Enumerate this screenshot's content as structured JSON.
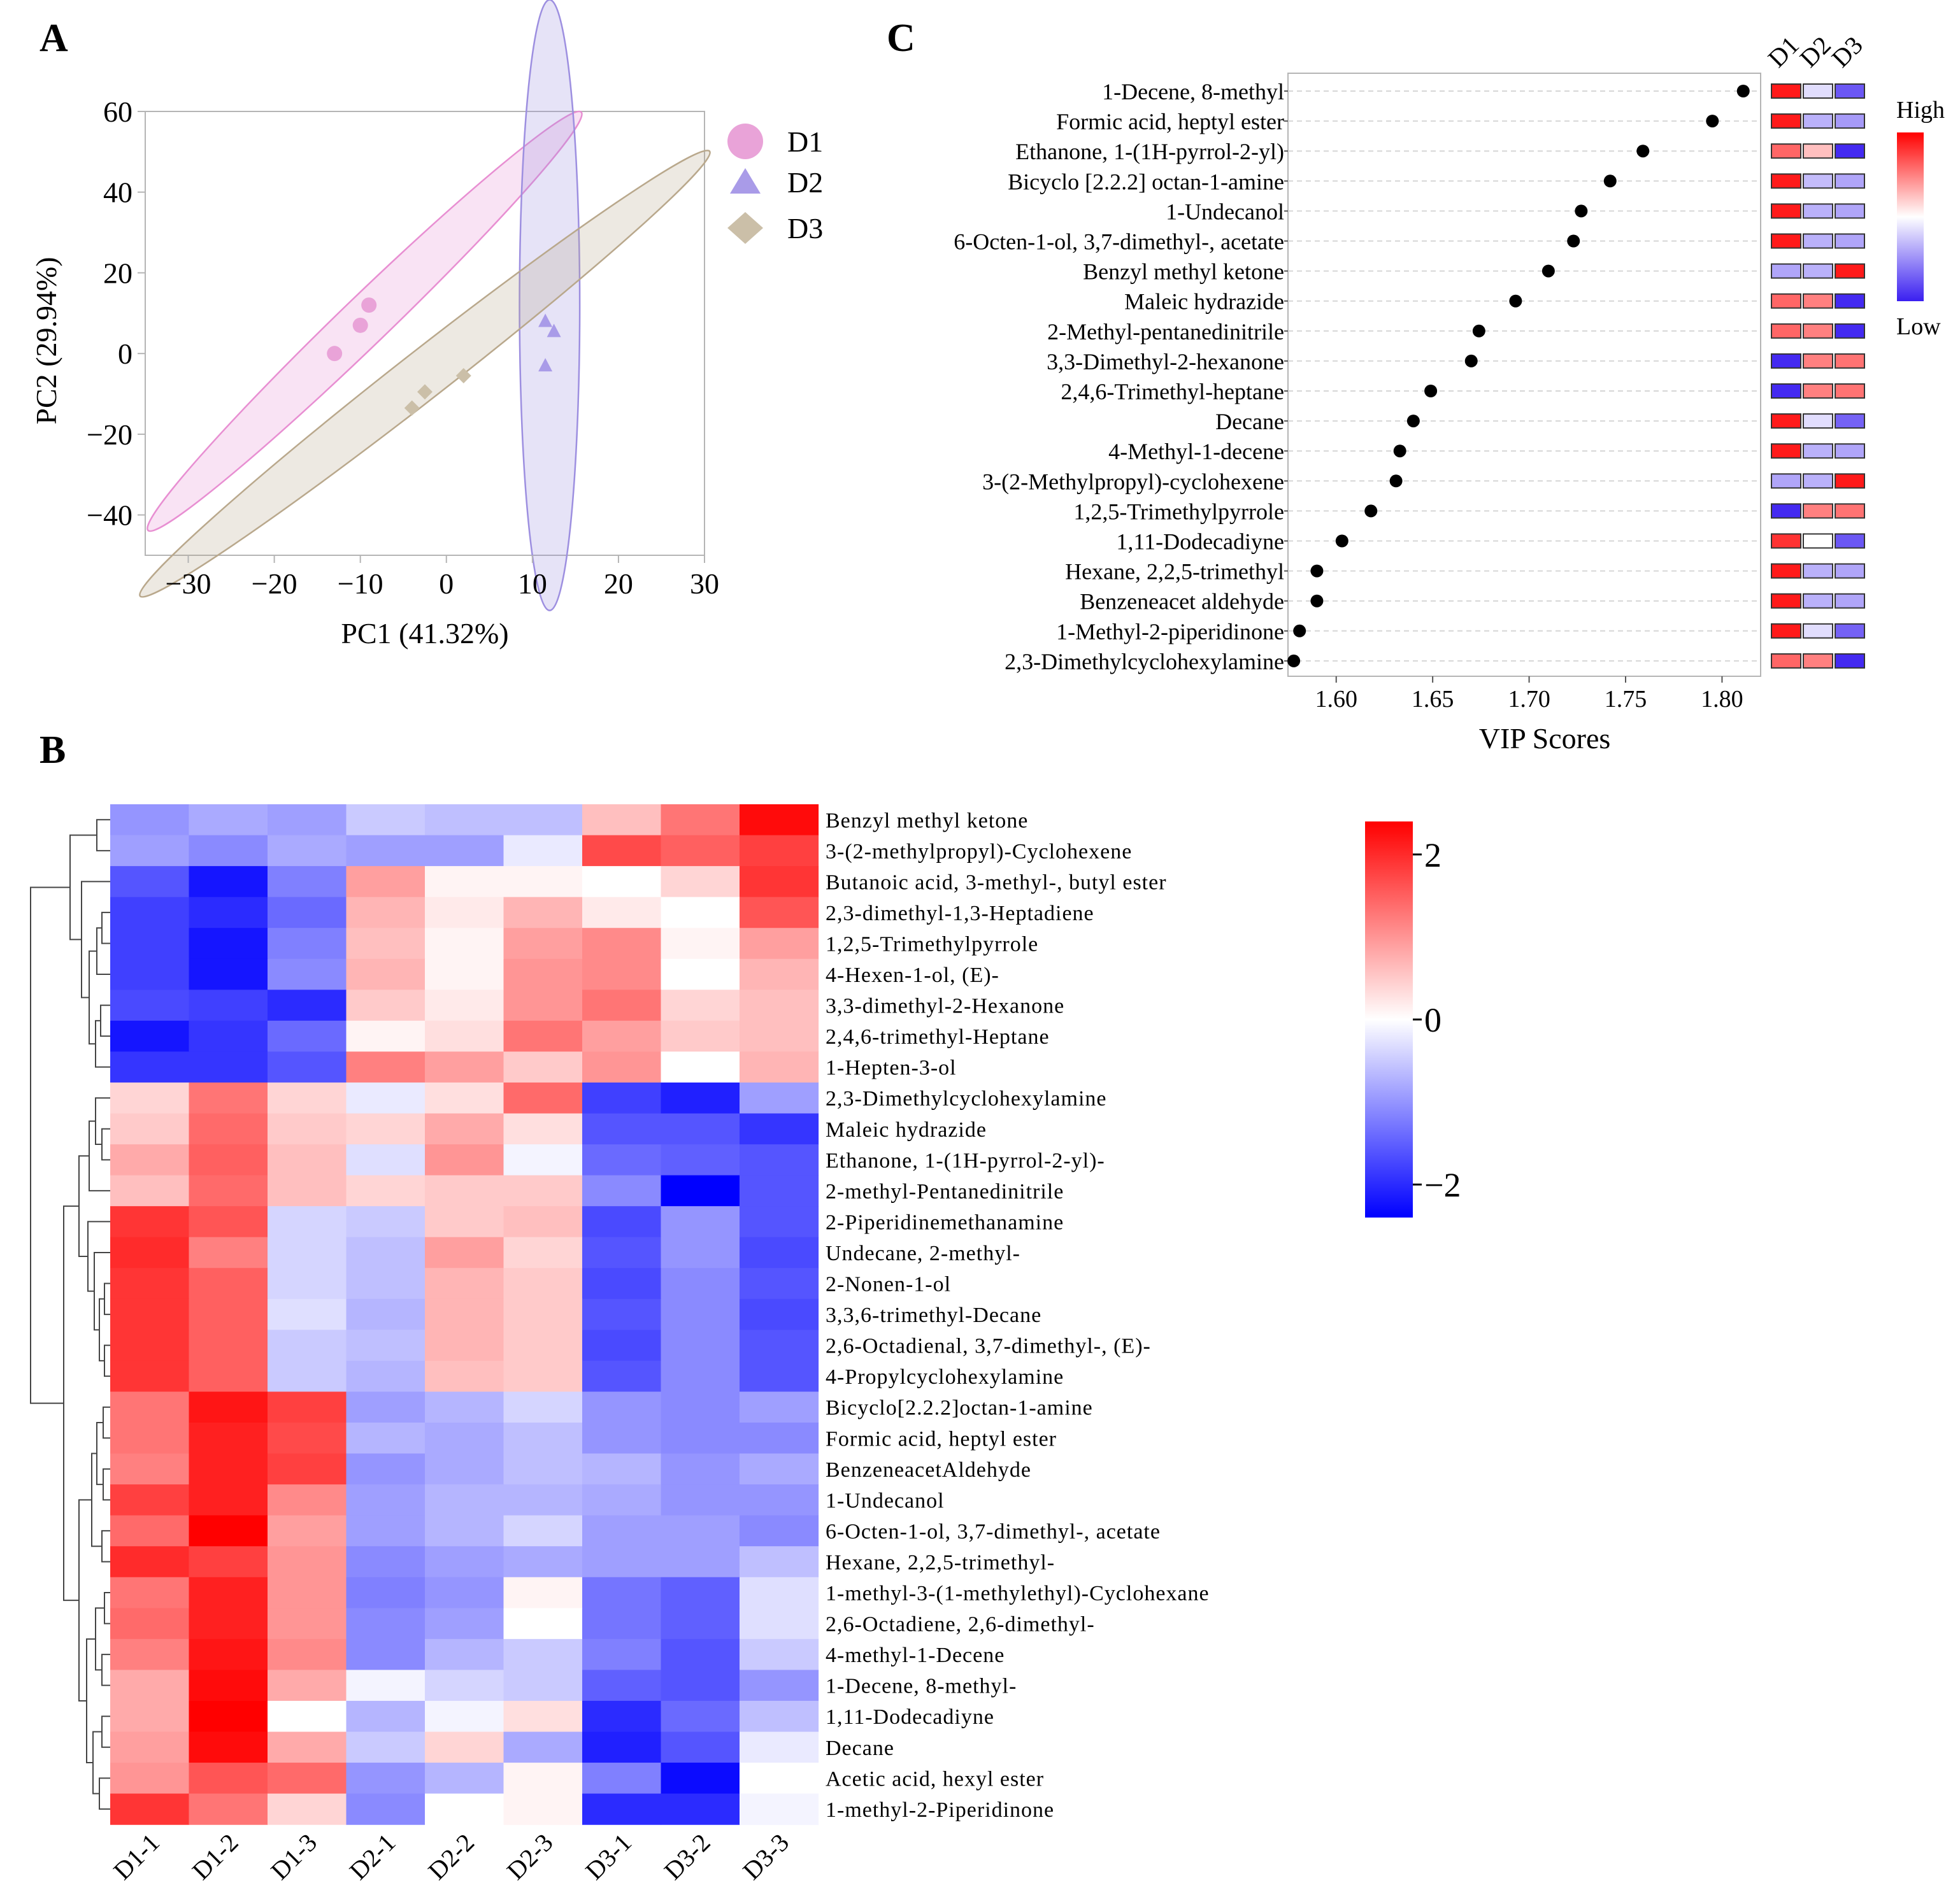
{
  "figure": {
    "panel_labels": [
      "A",
      "B",
      "C"
    ]
  },
  "chart_data": [
    {
      "type": "scatter",
      "panel": "A",
      "title": "",
      "xlabel": "PC1 (41.32%)",
      "ylabel": "PC2 (29.94%)",
      "xlim": [
        -35,
        30
      ],
      "ylim": [
        -50,
        60
      ],
      "xticks": [
        -30,
        -20,
        -10,
        0,
        10,
        20,
        30
      ],
      "xtick_labels": [
        "−30",
        "−20",
        "−10",
        "0",
        "10",
        "20",
        "30"
      ],
      "yticks": [
        -40,
        -20,
        0,
        20,
        40,
        60
      ],
      "ytick_labels": [
        "−40",
        "−20",
        "0",
        "20",
        "40",
        "60"
      ],
      "legend_position": "right-outside",
      "series": [
        {
          "name": "D1",
          "marker": "circle",
          "color": "#e9a3d8",
          "ellipse_color": "#e88fd2",
          "points": [
            [
              -13,
              0
            ],
            [
              -10,
              7
            ],
            [
              -9,
              12
            ]
          ],
          "ellipse": {
            "cx": -9.5,
            "cy": 8,
            "rx": 35,
            "ry": 2.8,
            "angle": 44
          }
        },
        {
          "name": "D2",
          "marker": "triangle",
          "color": "#a99be8",
          "ellipse_color": "#9d8fe0",
          "points": [
            [
              11.5,
              8
            ],
            [
              12.5,
              5.5
            ],
            [
              11.5,
              -3
            ]
          ],
          "ellipse": {
            "cx": 12,
            "cy": 12,
            "rx": 3.5,
            "ry": 35.5,
            "angle": 0
          }
        },
        {
          "name": "D3",
          "marker": "diamond",
          "color": "#cbbfa8",
          "ellipse_color": "#b9a88c",
          "points": [
            [
              -4,
              -13.5
            ],
            [
              -2.5,
              -9.5
            ],
            [
              2,
              -5.5
            ]
          ],
          "ellipse": {
            "cx": -2.5,
            "cy": -5,
            "rx": 42,
            "ry": 2.8,
            "angle": 38
          }
        }
      ]
    },
    {
      "type": "heatmap",
      "panel": "B",
      "columns": [
        "D1-1",
        "D1-2",
        "D1-3",
        "D2-1",
        "D2-2",
        "D2-3",
        "D3-1",
        "D3-2",
        "D3-3"
      ],
      "colorbar": {
        "min": -2.4,
        "max": 2.4,
        "ticks": [
          2,
          0,
          -2
        ],
        "tick_labels": [
          "2",
          "0",
          "−2"
        ],
        "low_color": "#0000ff",
        "mid_color": "#ffffff",
        "high_color": "#ff0000"
      },
      "rows": [
        {
          "name": "Benzyl methyl ketone",
          "values": [
            -1.0,
            -0.8,
            -0.9,
            -0.5,
            -0.6,
            -0.6,
            0.6,
            1.3,
            2.3
          ]
        },
        {
          "name": "3-(2-methylpropyl)-Cyclohexene",
          "values": [
            -0.9,
            -1.1,
            -0.8,
            -0.9,
            -0.9,
            -0.2,
            1.7,
            1.5,
            1.8
          ]
        },
        {
          "name": "Butanoic acid, 3-methyl-, butyl ester",
          "values": [
            -1.6,
            -2.2,
            -1.2,
            0.9,
            0.1,
            0.1,
            0.0,
            0.4,
            1.9
          ]
        },
        {
          "name": "2,3-dimethyl-1,3-Heptadiene",
          "values": [
            -1.8,
            -2.0,
            -1.4,
            0.7,
            0.2,
            0.7,
            0.2,
            0.0,
            1.6
          ]
        },
        {
          "name": "1,2,5-Trimethylpyrrole",
          "values": [
            -1.8,
            -2.2,
            -1.2,
            0.6,
            0.1,
            0.9,
            1.1,
            0.1,
            0.9
          ]
        },
        {
          "name": "4-Hexen-1-ol, (E)-",
          "values": [
            -1.8,
            -2.2,
            -1.1,
            0.7,
            0.1,
            1.0,
            1.1,
            0.0,
            0.7
          ]
        },
        {
          "name": "3,3-dimethyl-2-Hexanone",
          "values": [
            -1.7,
            -1.8,
            -2.0,
            0.5,
            0.2,
            1.0,
            1.3,
            0.4,
            0.6
          ]
        },
        {
          "name": "2,4,6-trimethyl-Heptane",
          "values": [
            -2.2,
            -1.9,
            -1.4,
            0.1,
            0.3,
            1.3,
            0.9,
            0.5,
            0.6
          ]
        },
        {
          "name": "1-Hepten-3-ol",
          "values": [
            -1.9,
            -1.9,
            -1.6,
            1.2,
            0.9,
            0.5,
            1.0,
            0.0,
            0.7
          ]
        },
        {
          "name": "2,3-Dimethylcyclohexylamine",
          "values": [
            0.4,
            1.3,
            0.4,
            -0.2,
            0.3,
            1.4,
            -1.8,
            -2.1,
            -0.9
          ]
        },
        {
          "name": "Maleic hydrazide",
          "values": [
            0.5,
            1.4,
            0.5,
            0.4,
            0.8,
            0.3,
            -1.6,
            -1.6,
            -1.9
          ]
        },
        {
          "name": "Ethanone, 1-(1H-pyrrol-2-yl)-",
          "values": [
            0.8,
            1.5,
            0.6,
            -0.3,
            1.0,
            -0.1,
            -1.4,
            -1.5,
            -1.6
          ]
        },
        {
          "name": "2-methyl-Pentanedinitrile",
          "values": [
            0.6,
            1.4,
            0.6,
            0.4,
            0.5,
            0.5,
            -1.1,
            -2.4,
            -1.6
          ]
        },
        {
          "name": "2-Piperidinemethanamine",
          "values": [
            1.9,
            1.6,
            -0.4,
            -0.5,
            0.5,
            0.6,
            -1.7,
            -1.0,
            -1.6
          ]
        },
        {
          "name": "Undecane, 2-methyl-",
          "values": [
            2.0,
            1.2,
            -0.4,
            -0.6,
            0.9,
            0.4,
            -1.6,
            -1.0,
            -1.7
          ]
        },
        {
          "name": "2-Nonen-1-ol",
          "values": [
            1.9,
            1.5,
            -0.4,
            -0.6,
            0.7,
            0.5,
            -1.7,
            -1.1,
            -1.6
          ]
        },
        {
          "name": "3,3,6-trimethyl-Decane",
          "values": [
            1.9,
            1.5,
            -0.3,
            -0.7,
            0.7,
            0.5,
            -1.6,
            -1.1,
            -1.7
          ]
        },
        {
          "name": "2,6-Octadienal, 3,7-dimethyl-, (E)-",
          "values": [
            1.9,
            1.5,
            -0.5,
            -0.6,
            0.7,
            0.5,
            -1.7,
            -1.1,
            -1.6
          ]
        },
        {
          "name": "4-Propylcyclohexylamine",
          "values": [
            1.9,
            1.5,
            -0.5,
            -0.7,
            0.6,
            0.5,
            -1.6,
            -1.1,
            -1.6
          ]
        },
        {
          "name": "Bicyclo[2.2.2]octan-1-amine",
          "values": [
            1.3,
            2.2,
            1.8,
            -0.9,
            -0.7,
            -0.4,
            -1.0,
            -1.1,
            -0.9
          ]
        },
        {
          "name": "Formic acid, heptyl ester",
          "values": [
            1.3,
            2.1,
            1.7,
            -0.7,
            -0.8,
            -0.6,
            -1.0,
            -1.1,
            -1.1
          ]
        },
        {
          "name": "BenzeneacetAldehyde",
          "values": [
            1.2,
            2.1,
            1.8,
            -1.0,
            -0.8,
            -0.6,
            -0.7,
            -1.0,
            -0.8
          ]
        },
        {
          "name": "1-Undecanol",
          "values": [
            1.8,
            2.1,
            1.1,
            -0.9,
            -0.7,
            -0.7,
            -0.8,
            -1.0,
            -1.0
          ]
        },
        {
          "name": "6-Octen-1-ol, 3,7-dimethyl-, acetate",
          "values": [
            1.4,
            2.4,
            0.9,
            -0.9,
            -0.7,
            -0.4,
            -0.9,
            -0.9,
            -1.1
          ]
        },
        {
          "name": "Hexane, 2,2,5-trimethyl-",
          "values": [
            2.0,
            1.8,
            1.0,
            -1.1,
            -0.9,
            -0.8,
            -0.9,
            -0.9,
            -0.6
          ]
        },
        {
          "name": "1-methyl-3-(1-methylethyl)-Cyclohexane",
          "values": [
            1.3,
            2.1,
            1.0,
            -1.2,
            -1.0,
            0.1,
            -1.3,
            -1.5,
            -0.3
          ]
        },
        {
          "name": "2,6-Octadiene, 2,6-dimethyl-",
          "values": [
            1.4,
            2.1,
            1.0,
            -1.1,
            -0.9,
            0.0,
            -1.3,
            -1.5,
            -0.3
          ]
        },
        {
          "name": "4-methyl-1-Decene",
          "values": [
            1.2,
            2.2,
            1.1,
            -1.1,
            -0.7,
            -0.5,
            -1.2,
            -1.6,
            -0.5
          ]
        },
        {
          "name": "1-Decene, 8-methyl-",
          "values": [
            0.8,
            2.3,
            0.8,
            -0.1,
            -0.4,
            -0.5,
            -1.5,
            -1.6,
            -1.0
          ]
        },
        {
          "name": "1,11-Dodecadiyne",
          "values": [
            0.8,
            2.6,
            0.0,
            -0.7,
            -0.1,
            0.3,
            -2.0,
            -1.4,
            -0.6
          ]
        },
        {
          "name": "Decane",
          "values": [
            0.9,
            2.3,
            0.8,
            -0.5,
            0.4,
            -0.8,
            -2.1,
            -1.6,
            -0.2
          ]
        },
        {
          "name": "Acetic acid, hexyl ester",
          "values": [
            1.0,
            1.6,
            1.4,
            -1.0,
            -0.7,
            0.1,
            -1.2,
            -2.3,
            0.0
          ]
        },
        {
          "name": "1-methyl-2-Piperidinone",
          "values": [
            1.9,
            1.3,
            0.4,
            -1.1,
            0.0,
            0.1,
            -2.0,
            -2.0,
            -0.1
          ]
        }
      ]
    },
    {
      "type": "scatter",
      "panel": "C",
      "subtype": "vip-dot-plot",
      "xlabel": "VIP Scores",
      "xlim": [
        1.575,
        1.82
      ],
      "xticks": [
        1.6,
        1.65,
        1.7,
        1.75,
        1.8
      ],
      "xtick_labels": [
        "1.60",
        "1.65",
        "1.70",
        "1.75",
        "1.80"
      ],
      "grid": true,
      "group_labels": [
        "D1",
        "D2",
        "D3"
      ],
      "legend": {
        "high": "High",
        "low": "Low",
        "colors": [
          "#ff0000",
          "#ffffff",
          "#3a1ff0"
        ]
      },
      "points": [
        {
          "name": "1-Decene, 8-methyl",
          "vip": 1.811,
          "levels": [
            1.8,
            -0.3,
            -1.5
          ]
        },
        {
          "name": "Formic acid, heptyl ester",
          "vip": 1.795,
          "levels": [
            1.8,
            -0.7,
            -0.9
          ]
        },
        {
          "name": "Ethanone, 1-(1H-pyrrol-2-yl)",
          "vip": 1.759,
          "levels": [
            1.2,
            0.5,
            -1.9
          ]
        },
        {
          "name": "Bicyclo [2.2.2] octan-1-amine",
          "vip": 1.742,
          "levels": [
            1.8,
            -0.6,
            -0.8
          ]
        },
        {
          "name": "1-Undecanol",
          "vip": 1.727,
          "levels": [
            1.8,
            -0.7,
            -0.8
          ]
        },
        {
          "name": "6-Octen-1-ol, 3,7-dimethyl-, acetate",
          "vip": 1.723,
          "levels": [
            1.8,
            -0.7,
            -0.8
          ]
        },
        {
          "name": "Benzyl methyl ketone",
          "vip": 1.71,
          "levels": [
            -0.8,
            -0.7,
            1.8
          ]
        },
        {
          "name": "Maleic hydrazide",
          "vip": 1.693,
          "levels": [
            1.2,
            1.0,
            -1.9
          ]
        },
        {
          "name": "2-Methyl-pentanedinitrile",
          "vip": 1.674,
          "levels": [
            1.2,
            1.0,
            -1.9
          ]
        },
        {
          "name": "3,3-Dimethyl-2-hexanone",
          "vip": 1.67,
          "levels": [
            -1.9,
            1.0,
            1.1
          ]
        },
        {
          "name": "2,4,6-Trimethyl-heptane",
          "vip": 1.649,
          "levels": [
            -1.9,
            1.0,
            1.1
          ]
        },
        {
          "name": "Decane",
          "vip": 1.64,
          "levels": [
            1.8,
            -0.3,
            -1.4
          ]
        },
        {
          "name": "4-Methyl-1-decene",
          "vip": 1.633,
          "levels": [
            1.8,
            -0.7,
            -0.8
          ]
        },
        {
          "name": "3-(2-Methylpropyl)-cyclohexene",
          "vip": 1.631,
          "levels": [
            -0.8,
            -0.7,
            1.8
          ]
        },
        {
          "name": "1,2,5-Trimethylpyrrole",
          "vip": 1.618,
          "levels": [
            -1.9,
            1.0,
            1.1
          ]
        },
        {
          "name": "1,11-Dodecadiyne",
          "vip": 1.603,
          "levels": [
            1.6,
            0.0,
            -1.5
          ]
        },
        {
          "name": "Hexane, 2,2,5-trimethyl",
          "vip": 1.59,
          "levels": [
            1.8,
            -0.7,
            -0.8
          ]
        },
        {
          "name": "Benzeneacet aldehyde",
          "vip": 1.59,
          "levels": [
            1.8,
            -0.7,
            -0.8
          ]
        },
        {
          "name": "1-Methyl-2-piperidinone",
          "vip": 1.581,
          "levels": [
            1.8,
            -0.3,
            -1.4
          ]
        },
        {
          "name": "2,3-Dimethylcyclohexylamine",
          "vip": 1.578,
          "levels": [
            1.2,
            1.0,
            -1.9
          ]
        }
      ]
    }
  ]
}
